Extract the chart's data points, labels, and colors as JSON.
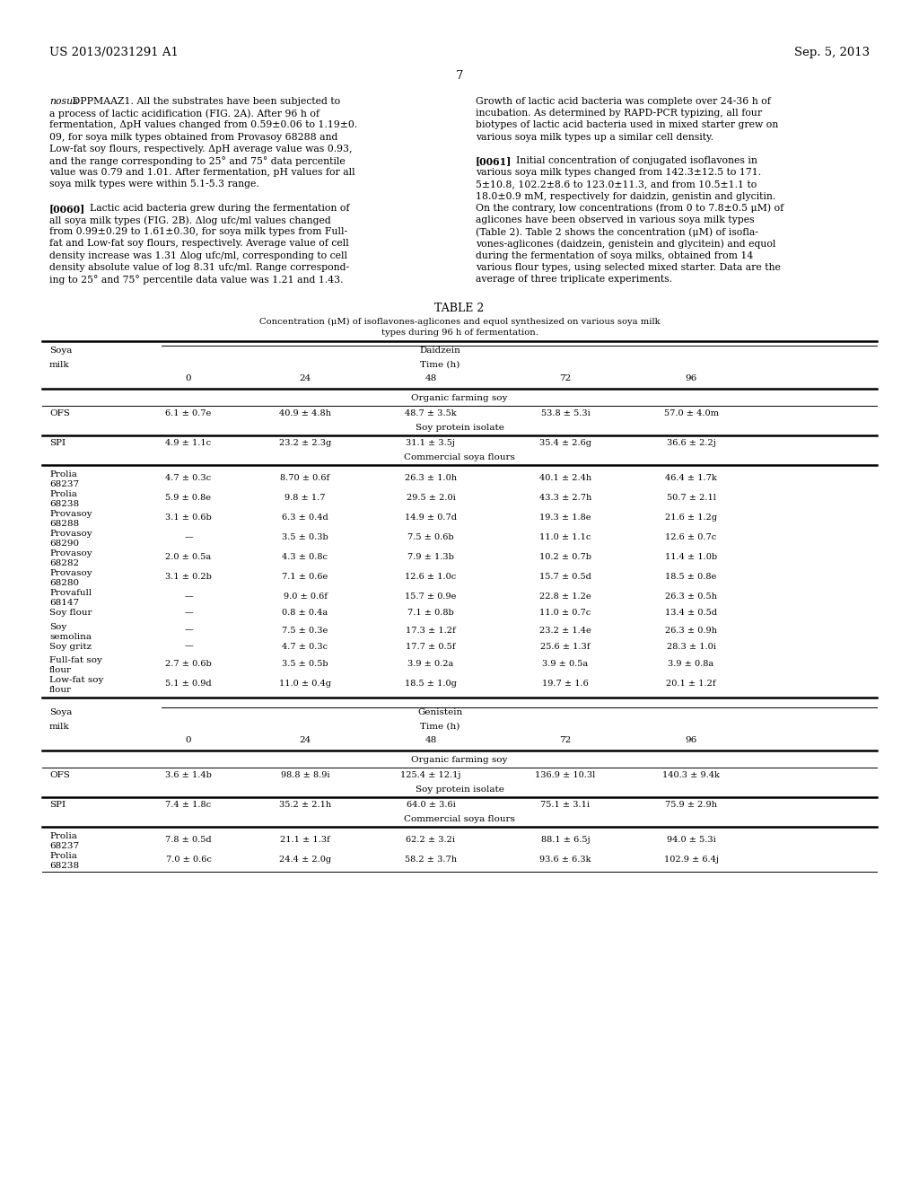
{
  "background_color": "#ffffff",
  "header_left": "US 2013/0231291 A1",
  "header_right": "Sep. 5, 2013",
  "page_number": "7",
  "left_col_lines": [
    {
      "text": "nosus",
      "italic": true,
      "cont": " DPPMAAZ1. All the substrates have been subjected to"
    },
    {
      "text": "a process of lactic acidification (FIG. 2A). After 96 h of",
      "italic": false
    },
    {
      "text": "fermentation, ΔpH values changed from 0.59±0.06 to 1.19±0.",
      "italic": false
    },
    {
      "text": "09, for soya milk types obtained from Provasoy 68288 and",
      "italic": false
    },
    {
      "text": "Low-fat soy flours, respectively. ΔpH average value was 0.93,",
      "italic": false
    },
    {
      "text": "and the range corresponding to 25° and 75° data percentile",
      "italic": false
    },
    {
      "text": "value was 0.79 and 1.01. After fermentation, pH values for all",
      "italic": false
    },
    {
      "text": "soya milk types were within 5.1-5.3 range.",
      "italic": false
    },
    {
      "text": "",
      "italic": false
    },
    {
      "text": "[0060]",
      "bold": true,
      "cont": "    Lactic acid bacteria grew during the fermentation of"
    },
    {
      "text": "all soya milk types (FIG. 2B). Δlog ufc/ml values changed",
      "italic": false
    },
    {
      "text": "from 0.99±0.29 to 1.61±0.30, for soya milk types from Full-",
      "italic": false
    },
    {
      "text": "fat and Low-fat soy flours, respectively. Average value of cell",
      "italic": false
    },
    {
      "text": "density increase was 1.31 Δlog ufc/ml, corresponding to cell",
      "italic": false
    },
    {
      "text": "density absolute value of log 8.31 ufc/ml. Range correspond-",
      "italic": false
    },
    {
      "text": "ing to 25° and 75° percentile data value was 1.21 and 1.43.",
      "italic": false
    }
  ],
  "right_col_lines": [
    {
      "text": "Growth of lactic acid bacteria was complete over 24-36 h of"
    },
    {
      "text": "incubation. As determined by RAPD-PCR typizing, all four"
    },
    {
      "text": "biotypes of lactic acid bacteria used in mixed starter grew on"
    },
    {
      "text": "various soya milk types up a similar cell density."
    },
    {
      "text": ""
    },
    {
      "text": "[0061]",
      "bold": true,
      "cont": "    Initial concentration of conjugated isoflavones in"
    },
    {
      "text": "various soya milk types changed from 142.3±12.5 to 171."
    },
    {
      "text": "5±10.8, 102.2±8.6 to 123.0±11.3, and from 10.5±1.1 to"
    },
    {
      "text": "18.0±0.9 mM, respectively for daidzin, genistin and glycitin."
    },
    {
      "text": "On the contrary, low concentrations (from 0 to 7.8±0.5 μM) of"
    },
    {
      "text": "aglicones have been observed in various soya milk types"
    },
    {
      "text": "(Table 2). Table 2 shows the concentration (μM) of isofla-"
    },
    {
      "text": "vones-aglicones (daidzein, genistein and glycitein) and equol"
    },
    {
      "text": "during the fermentation of soya milks, obtained from 14"
    },
    {
      "text": "various flour types, using selected mixed starter. Data are the"
    },
    {
      "text": "average of three triplicate experiments."
    }
  ],
  "table_title": "TABLE 2",
  "table_caption_line1": "Concentration (μM) of isoflavones-aglicones and equol synthesized on various soya milk",
  "table_caption_line2": "types during 96 h of fermentation.",
  "col_headers": [
    "0",
    "24",
    "48",
    "72",
    "96"
  ],
  "organic_farming_label": "Organic farming soy",
  "soy_protein_label": "Soy protein isolate",
  "commercial_label": "Commercial soya flours",
  "daidzein_label": "Daidzein",
  "daidzein_time": "Time (h)",
  "genistein_label": "Genistein",
  "genistein_time": "Time (h)",
  "daidzein_rows": [
    {
      "name": "OFS",
      "name2": "",
      "values": [
        "6.1 ± 0.7e",
        "40.9 ± 4.8h",
        "48.7 ± 3.5k",
        "53.8 ± 5.3i",
        "57.0 ± 4.0m"
      ]
    },
    {
      "name": "SPI",
      "name2": "",
      "values": [
        "4.9 ± 1.1c",
        "23.2 ± 2.3g",
        "31.1 ± 3.5j",
        "35.4 ± 2.6g",
        "36.6 ± 2.2j"
      ]
    },
    {
      "name": "Prolia",
      "name2": "68237",
      "values": [
        "4.7 ± 0.3c",
        "8.70 ± 0.6f",
        "26.3 ± 1.0h",
        "40.1 ± 2.4h",
        "46.4 ± 1.7k"
      ]
    },
    {
      "name": "Prolia",
      "name2": "68238",
      "values": [
        "5.9 ± 0.8e",
        "9.8 ± 1.7",
        "29.5 ± 2.0i",
        "43.3 ± 2.7h",
        "50.7 ± 2.1l"
      ]
    },
    {
      "name": "Provasoy",
      "name2": "68288",
      "values": [
        "3.1 ± 0.6b",
        "6.3 ± 0.4d",
        "14.9 ± 0.7d",
        "19.3 ± 1.8e",
        "21.6 ± 1.2g"
      ]
    },
    {
      "name": "Provasoy",
      "name2": "68290",
      "values": [
        "—",
        "3.5 ± 0.3b",
        "7.5 ± 0.6b",
        "11.0 ± 1.1c",
        "12.6 ± 0.7c"
      ]
    },
    {
      "name": "Provasoy",
      "name2": "68282",
      "values": [
        "2.0 ± 0.5a",
        "4.3 ± 0.8c",
        "7.9 ± 1.3b",
        "10.2 ± 0.7b",
        "11.4 ± 1.0b"
      ]
    },
    {
      "name": "Provasoy",
      "name2": "68280",
      "values": [
        "3.1 ± 0.2b",
        "7.1 ± 0.6e",
        "12.6 ± 1.0c",
        "15.7 ± 0.5d",
        "18.5 ± 0.8e"
      ]
    },
    {
      "name": "Provafull",
      "name2": "68147",
      "values": [
        "—",
        "9.0 ± 0.6f",
        "15.7 ± 0.9e",
        "22.8 ± 1.2e",
        "26.3 ± 0.5h"
      ]
    },
    {
      "name": "Soy flour",
      "name2": "",
      "values": [
        "—",
        "0.8 ± 0.4a",
        "7.1 ± 0.8b",
        "11.0 ± 0.7c",
        "13.4 ± 0.5d"
      ]
    },
    {
      "name": "Soy",
      "name2": "semolina",
      "values": [
        "—",
        "7.5 ± 0.3e",
        "17.3 ± 1.2f",
        "23.2 ± 1.4e",
        "26.3 ± 0.9h"
      ]
    },
    {
      "name": "Soy gritz",
      "name2": "",
      "values": [
        "—",
        "4.7 ± 0.3c",
        "17.7 ± 0.5f",
        "25.6 ± 1.3f",
        "28.3 ± 1.0i"
      ]
    },
    {
      "name": "Full-fat soy",
      "name2": "flour",
      "values": [
        "2.7 ± 0.6b",
        "3.5 ± 0.5b",
        "3.9 ± 0.2a",
        "3.9 ± 0.5a",
        "3.9 ± 0.8a"
      ]
    },
    {
      "name": "Low-fat soy",
      "name2": "flour",
      "values": [
        "5.1 ± 0.9d",
        "11.0 ± 0.4g",
        "18.5 ± 1.0g",
        "19.7 ± 1.6",
        "20.1 ± 1.2f"
      ]
    }
  ],
  "genistein_rows": [
    {
      "name": "OFS",
      "name2": "",
      "values": [
        "3.6 ± 1.4b",
        "98.8 ± 8.9i",
        "125.4 ± 12.1j",
        "136.9 ± 10.3l",
        "140.3 ± 9.4k"
      ]
    },
    {
      "name": "SPI",
      "name2": "",
      "values": [
        "7.4 ± 1.8c",
        "35.2 ± 2.1h",
        "64.0 ± 3.6i",
        "75.1 ± 3.1i",
        "75.9 ± 2.9h"
      ]
    },
    {
      "name": "Prolia",
      "name2": "68237",
      "values": [
        "7.8 ± 0.5d",
        "21.1 ± 1.3f",
        "62.2 ± 3.2i",
        "88.1 ± 6.5j",
        "94.0 ± 5.3i"
      ]
    },
    {
      "name": "Prolia",
      "name2": "68238",
      "values": [
        "7.0 ± 0.6c",
        "24.4 ± 2.0g",
        "58.2 ± 3.7h",
        "93.6 ± 6.3k",
        "102.9 ± 6.4j"
      ]
    }
  ]
}
